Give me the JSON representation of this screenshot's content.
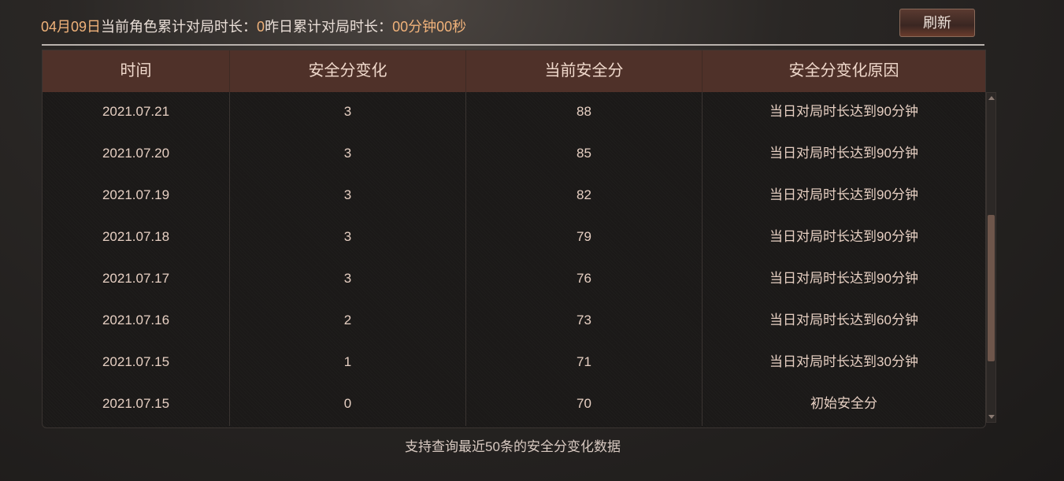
{
  "header": {
    "date": "04月09日",
    "current_label": "当前角色累计对局时长：",
    "current_value": "0",
    "yesterday_label": "昨日累计对局时长：",
    "yesterday_value": "00分钟00秒",
    "refresh_label": "刷新"
  },
  "table": {
    "columns": [
      "时间",
      "安全分变化",
      "当前安全分",
      "安全分变化原因"
    ],
    "rows": [
      [
        "2021.07.21",
        "3",
        "88",
        "当日对局时长达到90分钟"
      ],
      [
        "2021.07.20",
        "3",
        "85",
        "当日对局时长达到90分钟"
      ],
      [
        "2021.07.19",
        "3",
        "82",
        "当日对局时长达到90分钟"
      ],
      [
        "2021.07.18",
        "3",
        "79",
        "当日对局时长达到90分钟"
      ],
      [
        "2021.07.17",
        "3",
        "76",
        "当日对局时长达到90分钟"
      ],
      [
        "2021.07.16",
        "2",
        "73",
        "当日对局时长达到60分钟"
      ],
      [
        "2021.07.15",
        "1",
        "71",
        "当日对局时长达到30分钟"
      ],
      [
        "2021.07.15",
        "0",
        "70",
        "初始安全分"
      ]
    ]
  },
  "footer_note": "支持查询最近50条的安全分变化数据",
  "colors": {
    "accent": "#f0b27a",
    "header_bg": "#4f3129"
  }
}
